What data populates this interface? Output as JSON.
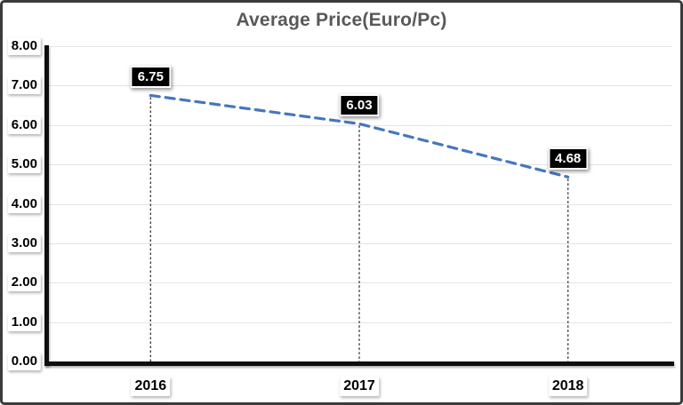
{
  "chart_data": {
    "type": "line",
    "title": "Average Price(Euro/Pc)",
    "categories": [
      "2016",
      "2017",
      "2018"
    ],
    "values": [
      6.75,
      6.03,
      4.68
    ],
    "point_labels": [
      "6.75",
      "6.03",
      "4.68"
    ],
    "series": [
      {
        "name": "Average Price(Euro/Pc)",
        "values": [
          6.75,
          6.03,
          4.68
        ]
      }
    ],
    "xlabel": "",
    "ylabel": "",
    "ylim": [
      0,
      8
    ],
    "y_ticks": [
      0,
      1,
      2,
      3,
      4,
      5,
      6,
      7,
      8
    ],
    "y_tick_labels": [
      "0.00",
      "1.00",
      "2.00",
      "3.00",
      "4.00",
      "5.00",
      "6.00",
      "7.00",
      "8.00"
    ],
    "grid": true,
    "legend": false,
    "line_style": "dashed",
    "drop_lines": true,
    "colors": {
      "line": "#4577BE",
      "title": "#595959",
      "axis": "#0e0e0e",
      "gridline": "#e4e4e4",
      "point_label_bg": "#000000",
      "point_label_text": "#ffffff",
      "tick_label_text": "#000000",
      "drop_line": "#3f3f3f",
      "background": "#ffffff"
    }
  }
}
